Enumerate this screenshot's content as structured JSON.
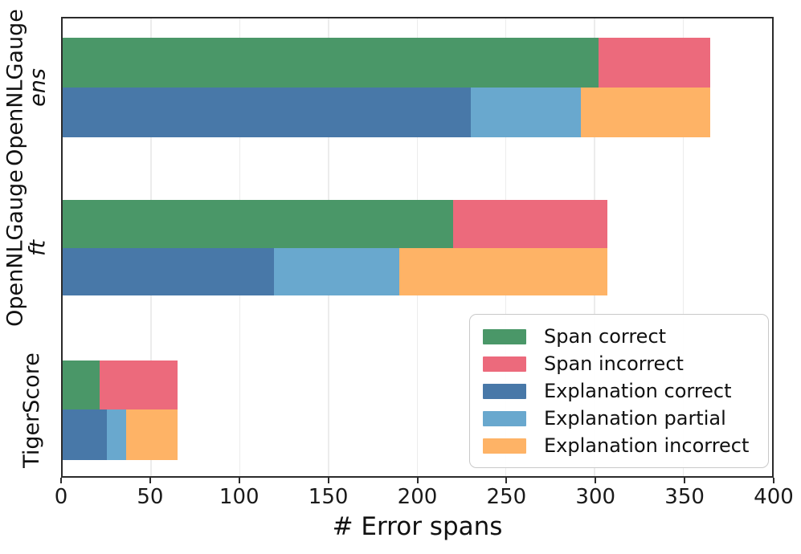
{
  "chart_data": {
    "type": "bar",
    "orientation": "horizontal",
    "stacked": true,
    "title": "",
    "xlabel": "# Error spans",
    "xlim": [
      0,
      400
    ],
    "xticks": [
      0,
      50,
      100,
      150,
      200,
      250,
      300,
      350,
      400
    ],
    "grid": true,
    "legend_position": "lower right",
    "legend_entries": [
      {
        "label": "Span correct",
        "color": "#4a9768"
      },
      {
        "label": "Span incorrect",
        "color": "#ec6a7c"
      },
      {
        "label": "Explanation correct",
        "color": "#4878a8"
      },
      {
        "label": "Explanation partial",
        "color": "#69a8ce"
      },
      {
        "label": "Explanation incorrect",
        "color": "#feb366"
      }
    ],
    "colors": {
      "Span correct": "#4a9768",
      "Span incorrect": "#ec6a7c",
      "Explanation correct": "#4878a8",
      "Explanation partial": "#69a8ce",
      "Explanation incorrect": "#feb366"
    },
    "groups": [
      {
        "label_line1": "OpenNLGauge",
        "label_line2": "ens",
        "bars": {
          "span": [
            {
              "series": "Span correct",
              "value": 302
            },
            {
              "series": "Span incorrect",
              "value": 63
            }
          ],
          "explanation": [
            {
              "series": "Explanation correct",
              "value": 230
            },
            {
              "series": "Explanation partial",
              "value": 62
            },
            {
              "series": "Explanation incorrect",
              "value": 73
            }
          ]
        }
      },
      {
        "label_line1": "OpenNLGauge",
        "label_line2": "ft",
        "bars": {
          "span": [
            {
              "series": "Span correct",
              "value": 220
            },
            {
              "series": "Span incorrect",
              "value": 87
            }
          ],
          "explanation": [
            {
              "series": "Explanation correct",
              "value": 119
            },
            {
              "series": "Explanation partial",
              "value": 71
            },
            {
              "series": "Explanation incorrect",
              "value": 117
            }
          ]
        }
      },
      {
        "label_line1": "TigerScore",
        "label_line2": "",
        "bars": {
          "span": [
            {
              "series": "Span correct",
              "value": 21
            },
            {
              "series": "Span incorrect",
              "value": 44
            }
          ],
          "explanation": [
            {
              "series": "Explanation correct",
              "value": 25
            },
            {
              "series": "Explanation partial",
              "value": 11
            },
            {
              "series": "Explanation incorrect",
              "value": 29
            }
          ]
        }
      }
    ]
  }
}
